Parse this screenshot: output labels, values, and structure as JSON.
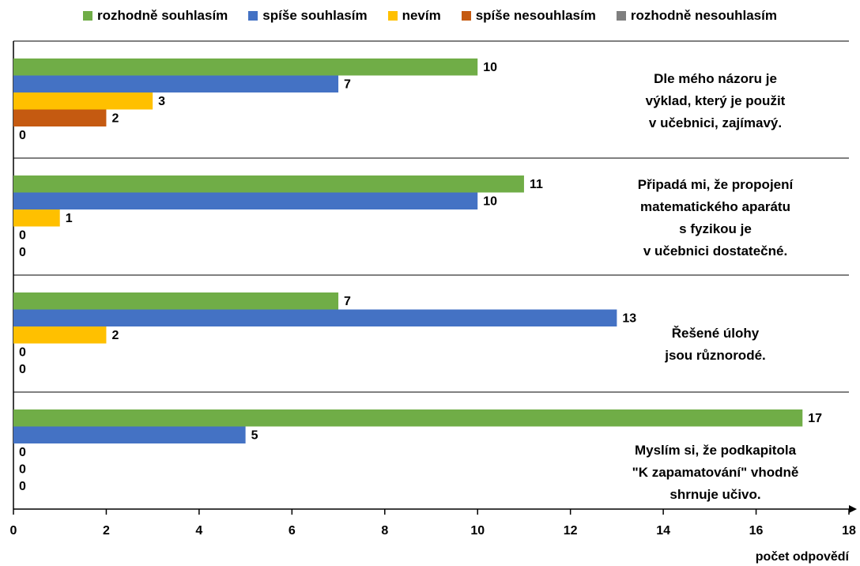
{
  "chart_data": {
    "type": "barh",
    "categories": [
      "Dle mého názoru je\nvýklad, který je použit\nv učebnici, zajímavý.",
      "Připadá mi, že propojení\nmatematického aparátu\ns fyzikou je\nv učebnici dostatečné.",
      "Řešené úlohy\njsou různorodé.",
      "Myslím si, že podkapitola\n\"K zapamatování\" vhodně\nshrnuje učivo."
    ],
    "series": [
      {
        "name": "rozhodně souhlasím",
        "color": "#70ad47",
        "values": [
          10,
          11,
          7,
          17
        ]
      },
      {
        "name": "spíše souhlasím",
        "color": "#4472c4",
        "values": [
          7,
          10,
          13,
          5
        ]
      },
      {
        "name": "nevím",
        "color": "#ffc000",
        "values": [
          3,
          1,
          2,
          0
        ]
      },
      {
        "name": "spíše nesouhlasím",
        "color": "#c55a11",
        "values": [
          2,
          0,
          0,
          0
        ]
      },
      {
        "name": "rozhodně nesouhlasím",
        "color": "#7f7f7f",
        "values": [
          0,
          0,
          0,
          0
        ]
      }
    ],
    "xlabel": "počet odpovědí",
    "xlim": [
      0,
      18
    ],
    "xticks": [
      0,
      2,
      4,
      6,
      8,
      10,
      12,
      14,
      16,
      18
    ],
    "legend": "top"
  }
}
